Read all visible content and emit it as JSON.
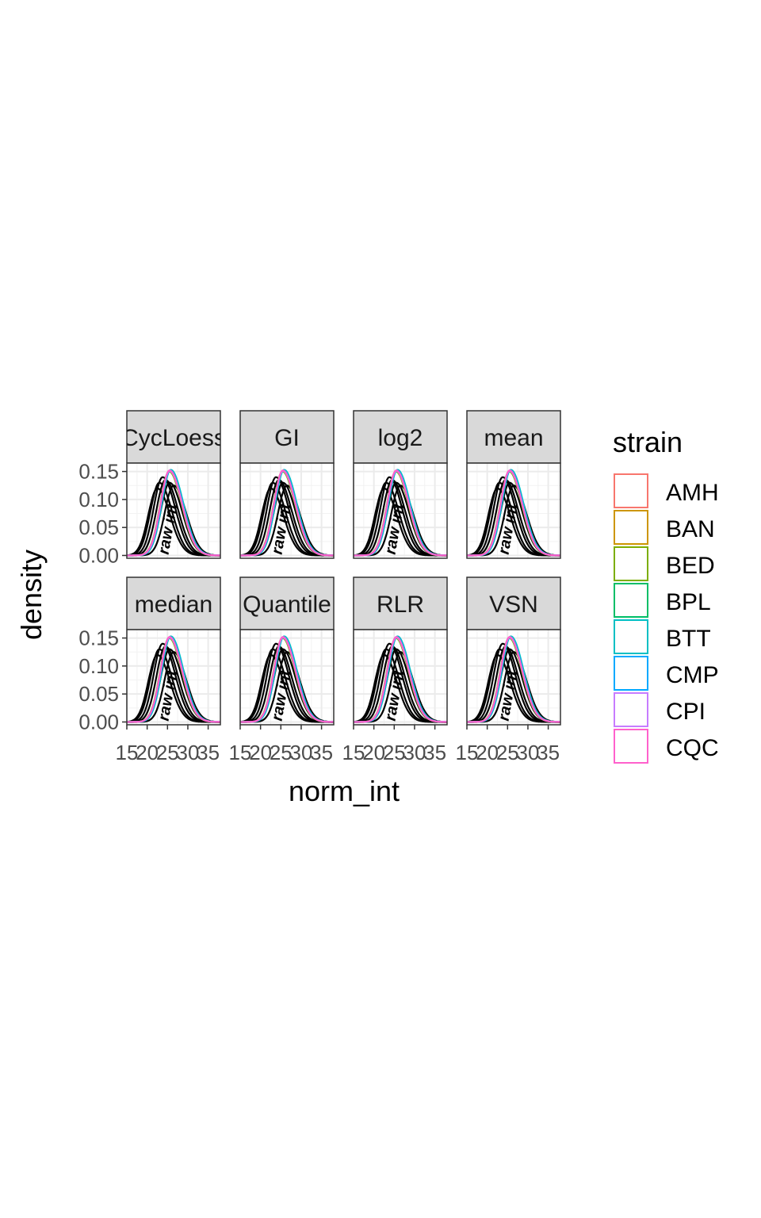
{
  "chart_data": {
    "type": "line",
    "xlabel": "norm_int",
    "ylabel": "density",
    "x_ticks": [
      "15",
      "20",
      "25",
      "30",
      "35"
    ],
    "y_ticks": [
      "0.00",
      "0.05",
      "0.10",
      "0.15"
    ],
    "xlim": [
      15,
      38
    ],
    "ylim": [
      -0.005,
      0.165
    ],
    "panels": [
      {
        "name": "CycLoess",
        "annotation": "raw int"
      },
      {
        "name": "GI",
        "annotation": "raw int"
      },
      {
        "name": "log2",
        "annotation": "raw int"
      },
      {
        "name": "mean",
        "annotation": "raw int"
      },
      {
        "name": "median",
        "annotation": "raw int"
      },
      {
        "name": "Quantile",
        "annotation": "raw int"
      },
      {
        "name": "RLR",
        "annotation": "raw int"
      },
      {
        "name": "VSN",
        "annotation": "raw int"
      }
    ],
    "raw_curves": [
      {
        "peak_x": 23.0,
        "peak_y": 0.13
      },
      {
        "peak_x": 23.8,
        "peak_y": 0.14
      },
      {
        "peak_x": 24.5,
        "peak_y": 0.135
      },
      {
        "peak_x": 25.5,
        "peak_y": 0.13
      },
      {
        "peak_x": 26.5,
        "peak_y": 0.125
      },
      {
        "peak_x": 22.5,
        "peak_y": 0.12
      }
    ],
    "legend": {
      "title": "strain",
      "position": "right",
      "entries": [
        {
          "label": "AMH",
          "color": "#F8766D",
          "peak_x": 25.5,
          "peak_y": 0.15
        },
        {
          "label": "BAN",
          "color": "#CD9600",
          "peak_x": 25.6,
          "peak_y": 0.151
        },
        {
          "label": "BED",
          "color": "#7CAE00",
          "peak_x": 25.4,
          "peak_y": 0.15
        },
        {
          "label": "BPL",
          "color": "#00BE67",
          "peak_x": 25.7,
          "peak_y": 0.152
        },
        {
          "label": "BTT",
          "color": "#00BFC4",
          "peak_x": 25.8,
          "peak_y": 0.153
        },
        {
          "label": "CMP",
          "color": "#00A9FF",
          "peak_x": 25.6,
          "peak_y": 0.152
        },
        {
          "label": "CPI",
          "color": "#C77CFF",
          "peak_x": 25.5,
          "peak_y": 0.151
        },
        {
          "label": "CQC",
          "color": "#FF61CC",
          "peak_x": 25.5,
          "peak_y": 0.152
        }
      ]
    },
    "grid": true
  }
}
